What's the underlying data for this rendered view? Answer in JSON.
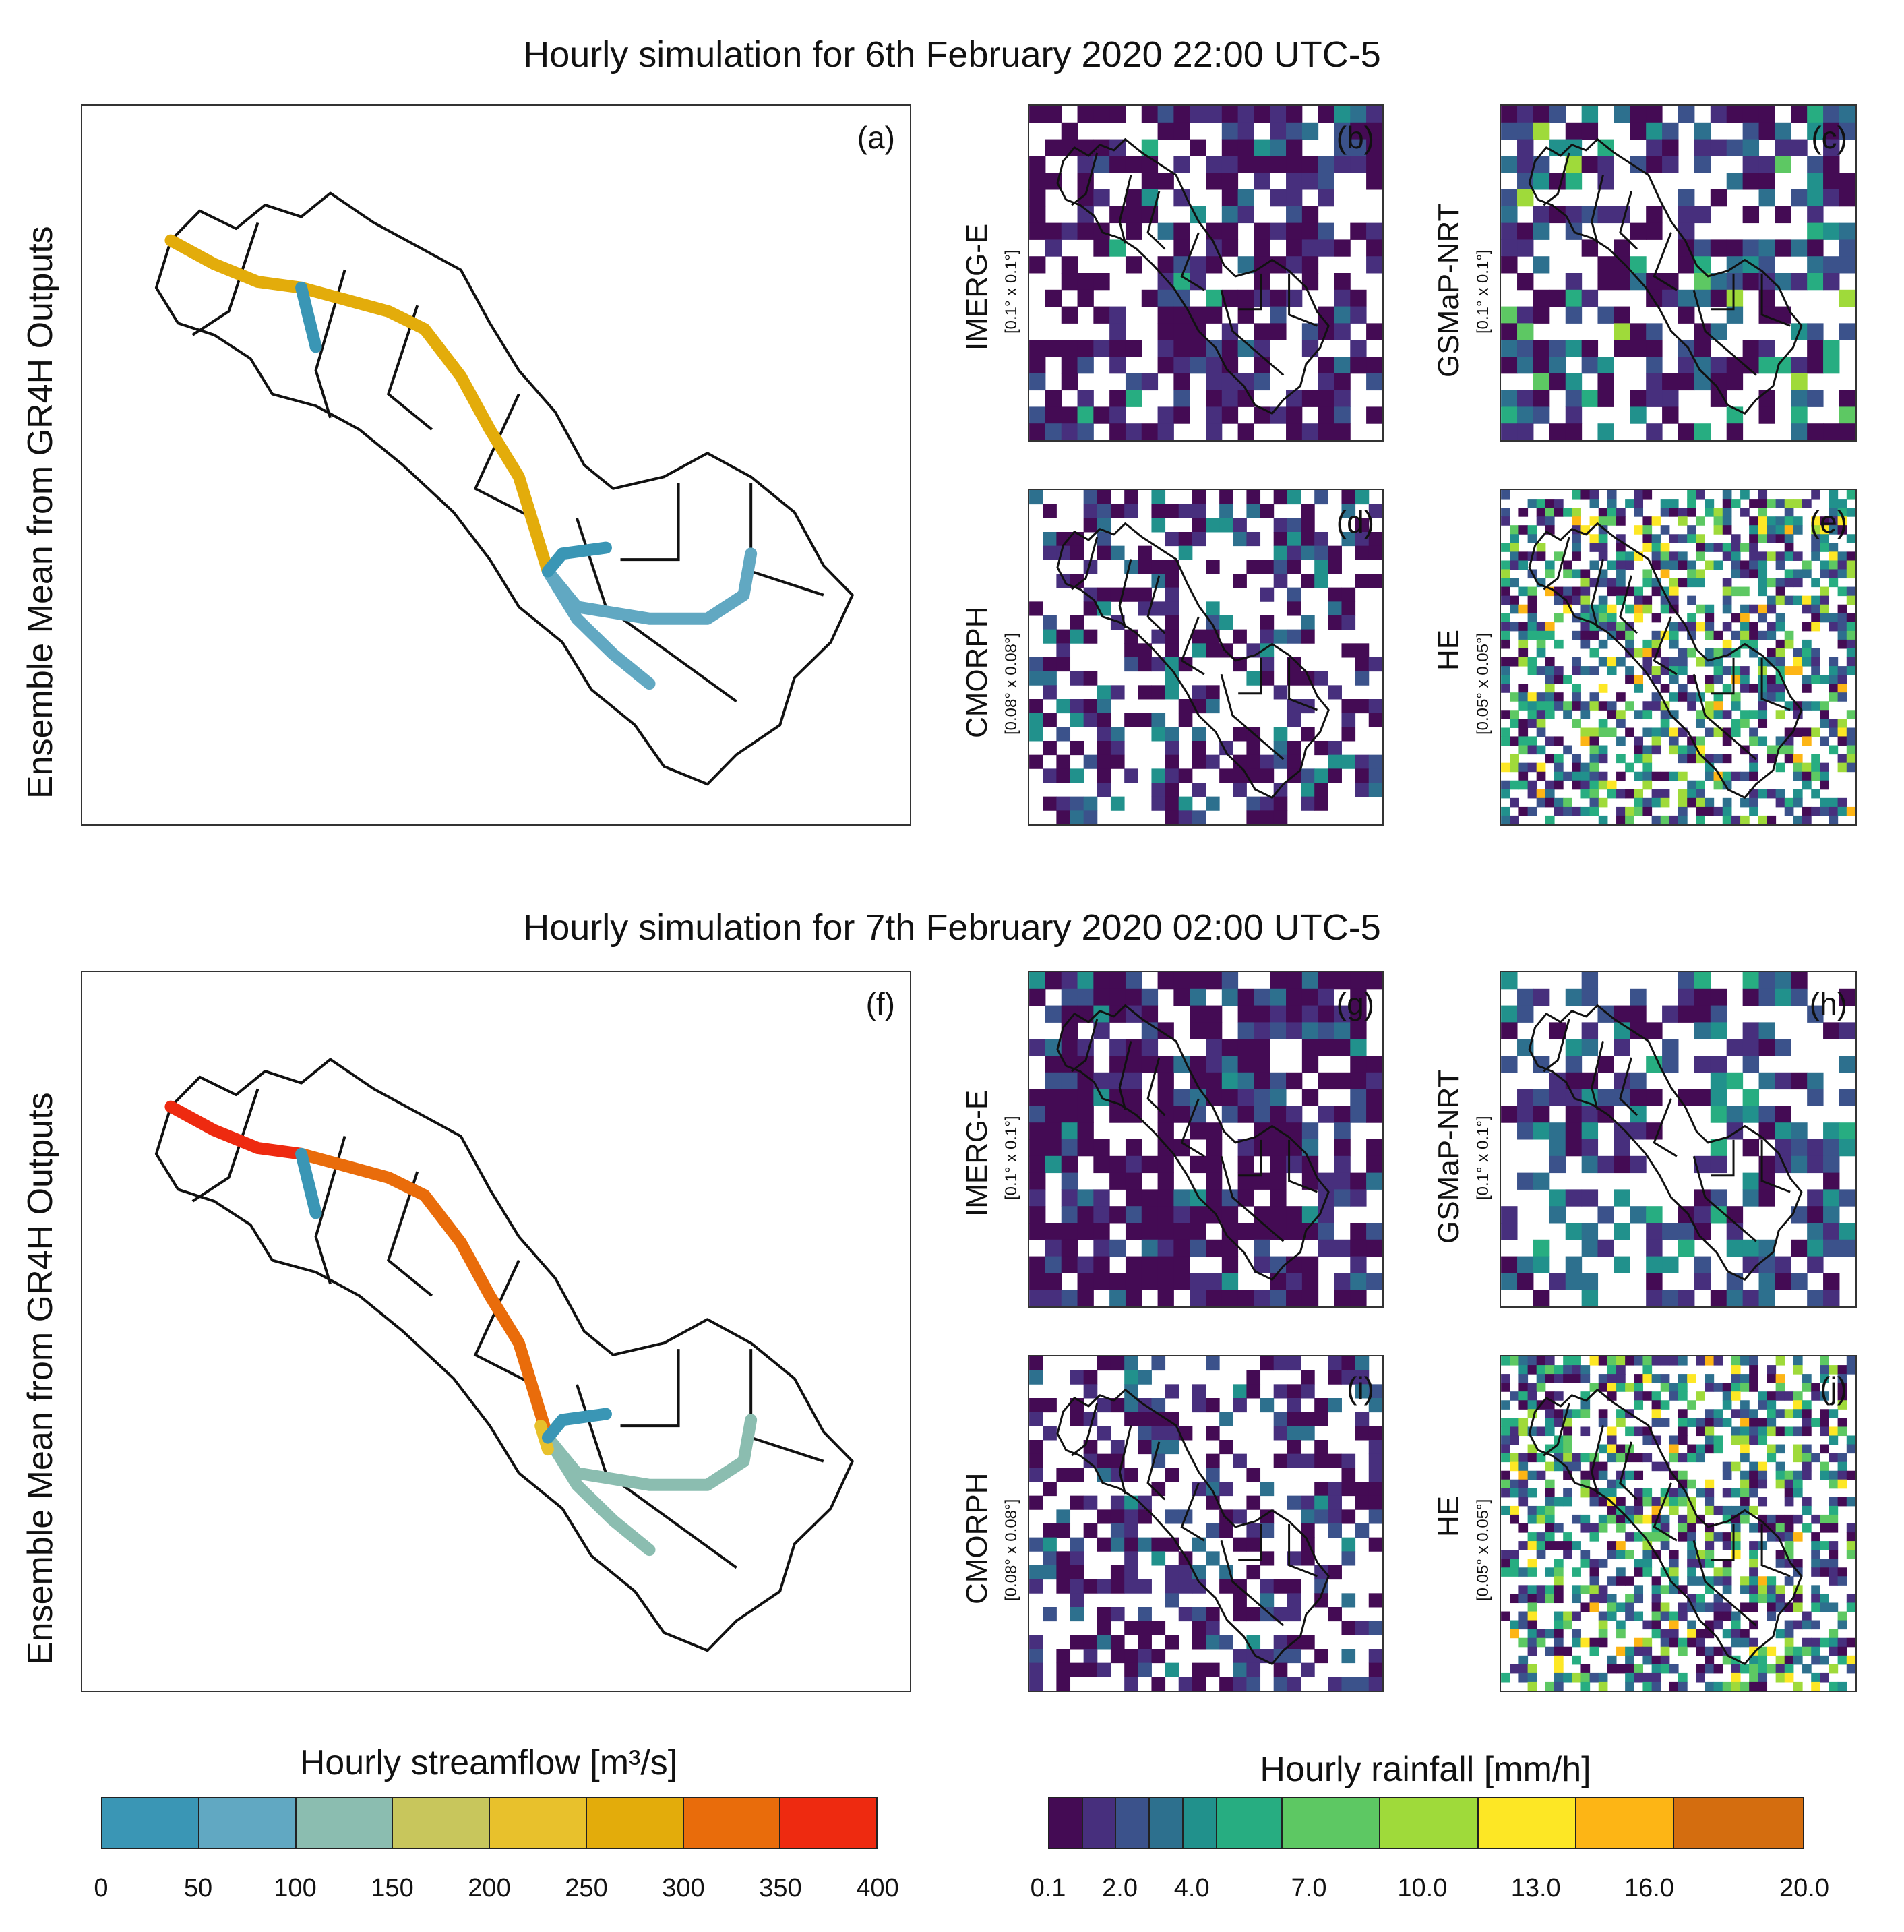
{
  "titles": {
    "top": "Hourly simulation for 6th February 2020 22:00 UTC-5",
    "bottom": "Hourly simulation for 7th February 2020 02:00 UTC-5"
  },
  "ensemble_label": "Ensemble Mean from GR4H Outputs",
  "products": [
    {
      "name": "IMERG-E",
      "resolution": "[0.1° x 0.1°]"
    },
    {
      "name": "GSMaP-NRT",
      "resolution": "[0.1° x 0.1°]"
    },
    {
      "name": "CMORPH",
      "resolution": "[0.08° x 0.08°]"
    },
    {
      "name": "HE",
      "resolution": "[0.05° x 0.05°]"
    }
  ],
  "panel_letters": [
    "(a)",
    "(b)",
    "(c)",
    "(d)",
    "(e)",
    "(f)",
    "(g)",
    "(h)",
    "(i)",
    "(j)"
  ],
  "streamflow_legend": {
    "title": "Hourly streamflow [m³/s]",
    "ticks": [
      "0",
      "50",
      "100",
      "150",
      "200",
      "250",
      "300",
      "350",
      "400"
    ],
    "colors": [
      "#3a96b5",
      "#61a8c2",
      "#8bbdb0",
      "#c8c65c",
      "#e8c12c",
      "#e3ac0b",
      "#e96c0b",
      "#ee2a10"
    ]
  },
  "rainfall_legend": {
    "title": "Hourly rainfall [mm/h]",
    "ticks": [
      "0.1",
      "2.0",
      "4.0",
      "7.0",
      "10.0",
      "13.0",
      "16.0",
      "20.0"
    ],
    "colors": [
      "#440b54",
      "#472f7d",
      "#3b528b",
      "#2d708e",
      "#21918c",
      "#27ad81",
      "#5dc863",
      "#9fda3a",
      "#fde725",
      "#fdb515",
      "#d46d0f"
    ]
  },
  "chart_data": [
    {
      "type": "heatmap",
      "panel": "(a)",
      "title": "Hourly simulation for 6th February 2020 22:00 UTC-5",
      "ylabel": "Ensemble Mean from GR4H Outputs",
      "series": [
        {
          "reach": "main-stem",
          "streamflow_class": "250-300"
        },
        {
          "reach": "north-tributary",
          "streamflow_class": "0-50"
        },
        {
          "reach": "lower-east-tributaries",
          "streamflow_class": "50-100"
        }
      ]
    },
    {
      "type": "heatmap",
      "panel": "(b)",
      "product": "IMERG-E",
      "dominant_rainfall_mm_h": "0.1-4.0",
      "max_rainfall_mm_h": "10.0"
    },
    {
      "type": "heatmap",
      "panel": "(c)",
      "product": "GSMaP-NRT",
      "dominant_rainfall_mm_h": "2.0-7.0",
      "max_rainfall_mm_h": "13.0"
    },
    {
      "type": "heatmap",
      "panel": "(d)",
      "product": "CMORPH",
      "dominant_rainfall_mm_h": "0.1-4.0",
      "max_rainfall_mm_h": "7.0"
    },
    {
      "type": "heatmap",
      "panel": "(e)",
      "product": "HE",
      "dominant_rainfall_mm_h": "2.0-10.0",
      "max_rainfall_mm_h": "16.0"
    },
    {
      "type": "heatmap",
      "panel": "(f)",
      "title": "Hourly simulation for 7th February 2020 02:00 UTC-5",
      "ylabel": "Ensemble Mean from GR4H Outputs",
      "series": [
        {
          "reach": "upper-main-stem",
          "streamflow_class": "350-400"
        },
        {
          "reach": "middle-main-stem",
          "streamflow_class": "300-350"
        },
        {
          "reach": "outlet",
          "streamflow_class": "200-250"
        },
        {
          "reach": "north-tributary",
          "streamflow_class": "0-50"
        },
        {
          "reach": "lower-east-tributaries",
          "streamflow_class": "100-150"
        }
      ]
    },
    {
      "type": "heatmap",
      "panel": "(g)",
      "product": "IMERG-E",
      "dominant_rainfall_mm_h": "0.1-4.0",
      "max_rainfall_mm_h": "7.0"
    },
    {
      "type": "heatmap",
      "panel": "(h)",
      "product": "GSMaP-NRT",
      "dominant_rainfall_mm_h": "2.0-7.0",
      "max_rainfall_mm_h": "7.0"
    },
    {
      "type": "heatmap",
      "panel": "(i)",
      "product": "CMORPH",
      "dominant_rainfall_mm_h": "0.1-4.0",
      "max_rainfall_mm_h": "7.0"
    },
    {
      "type": "heatmap",
      "panel": "(j)",
      "product": "HE",
      "dominant_rainfall_mm_h": "2.0-13.0",
      "max_rainfall_mm_h": "16.0"
    }
  ]
}
